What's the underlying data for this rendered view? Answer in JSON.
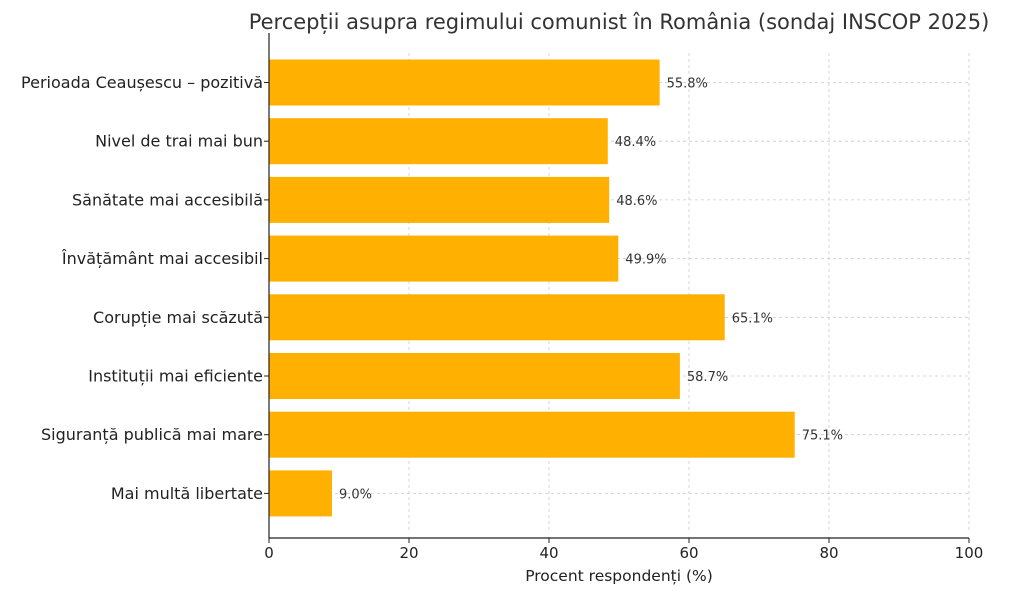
{
  "chart_data": {
    "type": "bar",
    "orientation": "horizontal",
    "title": "Percepții asupra regimului comunist în România (sondaj INSCOP 2025)",
    "xlabel": "Procent respondenți (%)",
    "ylabel": "",
    "xlim": [
      0,
      100
    ],
    "xticks": [
      0,
      20,
      40,
      60,
      80,
      100
    ],
    "grid": true,
    "bar_color": "#FFB000",
    "categories": [
      "Perioada Ceaușescu – pozitivă",
      "Nivel de trai mai bun",
      "Sănătate mai accesibilă",
      "Învățământ mai accesibil",
      "Corupție mai scăzută",
      "Instituții mai eficiente",
      "Siguranță publică mai mare",
      "Mai multă libertate"
    ],
    "values": [
      55.8,
      48.4,
      48.6,
      49.9,
      65.1,
      58.7,
      75.1,
      9.0
    ],
    "value_labels": [
      "55.8%",
      "48.4%",
      "48.6%",
      "49.9%",
      "65.1%",
      "58.7%",
      "75.1%",
      "9.0%"
    ]
  }
}
